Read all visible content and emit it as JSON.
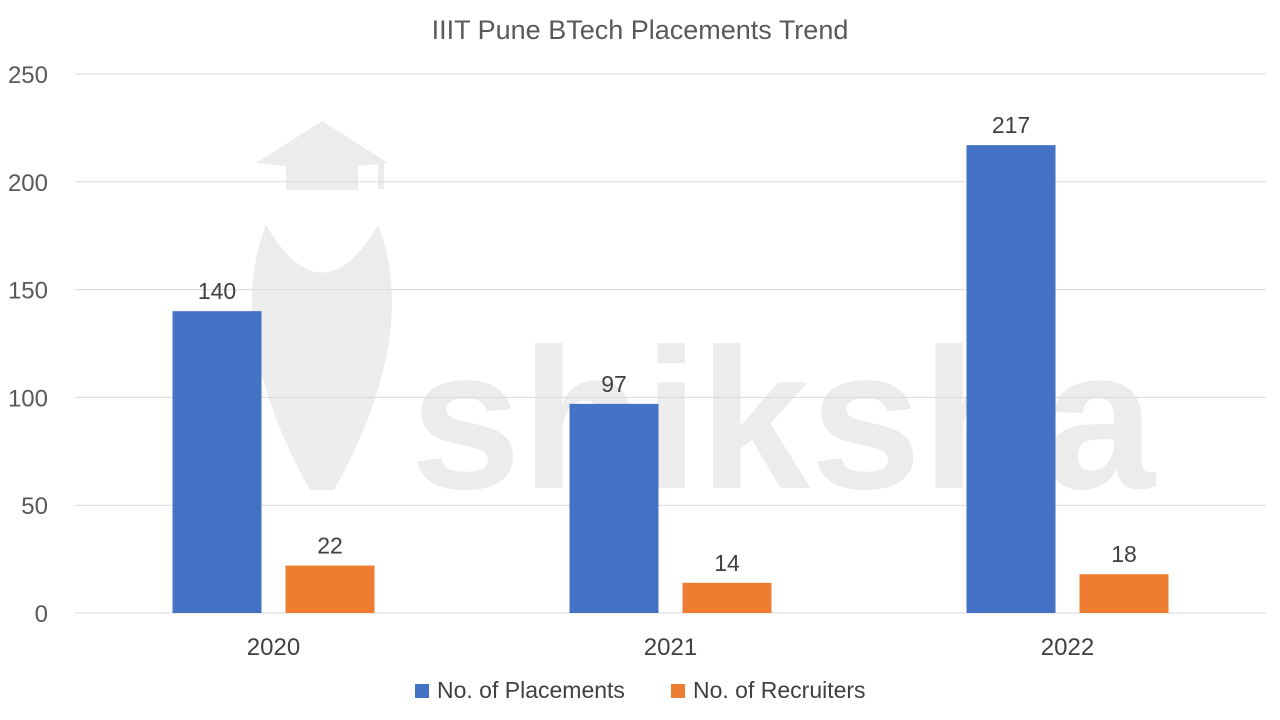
{
  "chart_data": {
    "type": "bar",
    "title": "IIIT Pune BTech Placements Trend",
    "categories": [
      "2020",
      "2021",
      "2022"
    ],
    "series": [
      {
        "name": "No. of Placements",
        "color": "#4472C4",
        "values": [
          140,
          97,
          217
        ]
      },
      {
        "name": "No. of Recruiters",
        "color": "#ED7D31",
        "values": [
          22,
          14,
          18
        ]
      }
    ],
    "ylim": [
      0,
      250
    ],
    "yticks": [
      0,
      50,
      100,
      150,
      200,
      250
    ],
    "grid": true,
    "legend_position": "bottom",
    "xlabel": "",
    "ylabel": ""
  },
  "watermark": {
    "text": "shiksha",
    "icon": "graduation-cap-icon"
  }
}
